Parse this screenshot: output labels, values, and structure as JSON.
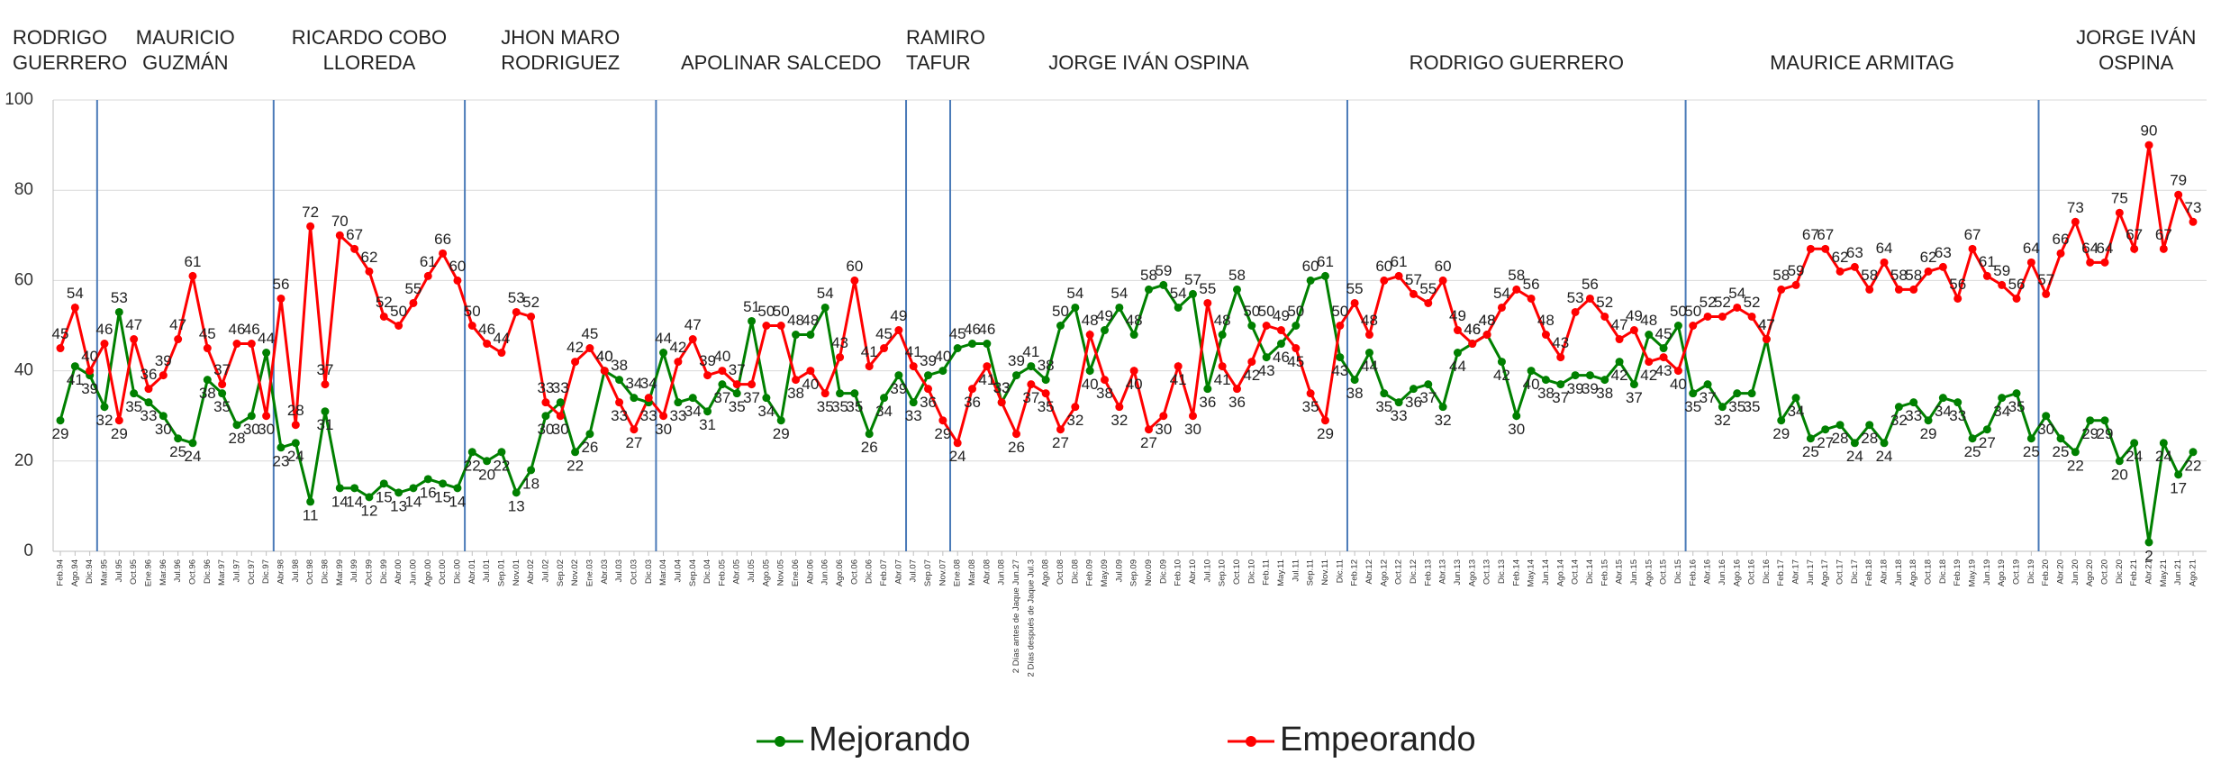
{
  "chart_data": {
    "type": "line",
    "categories": [
      "Feb.94",
      "Ago.94",
      "Dic.94",
      "Mar.95",
      "Jul.95",
      "Oct.95",
      "Ene.96",
      "Mar.96",
      "Jul.96",
      "Oct.96",
      "Dic.96",
      "Mar.97",
      "Jul.97",
      "Oct.97",
      "Dic.97",
      "Abr.98",
      "Jul.98",
      "Oct.98",
      "Dic.98",
      "Mar.99",
      "Jul.99",
      "Oct.99",
      "Dic.99",
      "Abr.00",
      "Jun.00",
      "Ago.00",
      "Oct.00",
      "Dic.00",
      "Abr.01",
      "Jul.01",
      "Sep.01",
      "Nov.01",
      "Abr.02",
      "Jul.02",
      "Sep.02",
      "Nov.02",
      "Ene.03",
      "Abr.03",
      "Jul.03",
      "Oct.03",
      "Dic.03",
      "Mar.04",
      "Jul.04",
      "Sep.04",
      "Dic.04",
      "Feb.05",
      "Abr.05",
      "Jul.05",
      "Ago.05",
      "Nov.05",
      "Ene.06",
      "Abr.06",
      "Jun.06",
      "Ago.06",
      "Oct.06",
      "Dic.06",
      "Feb.07",
      "Abr.07",
      "Jul.07",
      "Sep.07",
      "Nov.07",
      "Ene.08",
      "Mar.08",
      "Abr.08",
      "Jun.08",
      "2 Días antes de Jaque Jun.27",
      "2 Días después de Jaque Jul.3",
      "Ago.08",
      "Oct.08",
      "Dic.08",
      "Feb.09",
      "May.09",
      "Jul.09",
      "Sep.09",
      "Nov.09",
      "Dic.09",
      "Feb.10",
      "Abr.10",
      "Jul.10",
      "Sep.10",
      "Oct.10",
      "Dic.10",
      "Feb.11",
      "May.11",
      "Jul.11",
      "Sep.11",
      "Nov.11",
      "Dic.11",
      "Feb.12",
      "Abr.12",
      "Ago.12",
      "Oct.12",
      "Dic.12",
      "Feb.13",
      "Abr.13",
      "Jun.13",
      "Ago.13",
      "Oct.13",
      "Dic.13",
      "Feb.14",
      "May.14",
      "Jun.14",
      "Ago.14",
      "Oct.14",
      "Dic.14",
      "Feb.15",
      "Abr.15",
      "Jun.15",
      "Ago.15",
      "Oct.15",
      "Dic.15",
      "Feb.16",
      "Abr.16",
      "Jun.16",
      "Ago.16",
      "Oct.16",
      "Dic.16",
      "Feb.17",
      "Abr.17",
      "Jun.17",
      "Ago.17",
      "Oct.17",
      "Dic.17",
      "Feb.18",
      "Abr.18",
      "Jun.18",
      "Ago.18",
      "Oct.18",
      "Dic.18",
      "Feb.19",
      "May.19",
      "Jun.19",
      "Ago.19",
      "Oct.19",
      "Dic.19",
      "Feb.20",
      "Abr.20",
      "Jun.20",
      "Ago.20",
      "Oct.20",
      "Dic.20",
      "Feb.21",
      "Abr.21",
      "May.21",
      "Jun.21",
      "Ago.21"
    ],
    "series": [
      {
        "name": "Mejorando",
        "color": "#008000",
        "values": [
          29,
          41,
          39,
          32,
          53,
          35,
          33,
          30,
          25,
          24,
          38,
          35,
          28,
          30,
          44,
          23,
          24,
          11,
          31,
          14,
          14,
          12,
          15,
          13,
          14,
          16,
          15,
          14,
          22,
          20,
          22,
          13,
          18,
          30,
          33,
          22,
          26,
          40,
          38,
          34,
          33,
          44,
          33,
          34,
          31,
          37,
          35,
          51,
          34,
          29,
          48,
          48,
          54,
          35,
          35,
          26,
          34,
          39,
          33,
          39,
          40,
          45,
          46,
          46,
          33,
          39,
          41,
          38,
          50,
          54,
          40,
          49,
          54,
          48,
          58,
          59,
          54,
          57,
          36,
          48,
          58,
          50,
          43,
          46,
          50,
          60,
          61,
          43,
          38,
          44,
          35,
          33,
          36,
          37,
          32,
          44,
          46,
          48,
          42,
          30,
          40,
          38,
          37,
          39,
          39,
          38,
          42,
          37,
          48,
          45,
          50,
          35,
          37,
          32,
          35,
          35,
          47,
          29,
          34,
          25,
          27,
          28,
          24,
          28,
          24,
          32,
          33,
          29,
          34,
          33,
          25,
          27,
          34,
          35,
          25,
          30,
          25,
          22,
          29,
          29,
          20,
          24,
          2,
          24,
          17,
          22
        ]
      },
      {
        "name": "Empeorando",
        "color": "#ff0000",
        "values": [
          45,
          54,
          40,
          46,
          29,
          47,
          36,
          39,
          47,
          61,
          45,
          37,
          46,
          46,
          30,
          56,
          28,
          72,
          37,
          70,
          67,
          62,
          52,
          50,
          55,
          61,
          66,
          60,
          50,
          46,
          44,
          53,
          52,
          33,
          30,
          42,
          45,
          40,
          33,
          27,
          34,
          30,
          42,
          47,
          39,
          40,
          37,
          37,
          50,
          50,
          38,
          40,
          35,
          43,
          60,
          41,
          45,
          49,
          41,
          36,
          29,
          24,
          36,
          41,
          33,
          26,
          37,
          35,
          27,
          32,
          48,
          38,
          32,
          40,
          27,
          30,
          41,
          30,
          55,
          41,
          36,
          42,
          50,
          49,
          45,
          35,
          29,
          50,
          55,
          48,
          60,
          61,
          57,
          55,
          60,
          49,
          46,
          48,
          54,
          58,
          56,
          48,
          43,
          53,
          56,
          52,
          47,
          49,
          42,
          43,
          40,
          50,
          52,
          52,
          54,
          52,
          47,
          58,
          59,
          67,
          67,
          62,
          63,
          58,
          64,
          58,
          58,
          62,
          63,
          56,
          67,
          61,
          59,
          56,
          64,
          57,
          66,
          73,
          64,
          64,
          75,
          67,
          90,
          67,
          79,
          73
        ]
      }
    ],
    "periods": [
      {
        "name": "RODRIGO GUERRERO"
      },
      {
        "name": "MAURICIO GUZMÁN",
        "from": "Mar.95"
      },
      {
        "name": "RICARDO COBO LLOREDA",
        "from": "Abr.98"
      },
      {
        "name": "JHON MARO RODRIGUEZ",
        "from": "Abr.01"
      },
      {
        "name": "APOLINAR SALCEDO",
        "from": "Mar.04"
      },
      {
        "name": "RAMIRO TAFUR",
        "from": "Jul.07"
      },
      {
        "name": "JORGE IVÁN OSPINA",
        "from": "Ene.08"
      },
      {
        "name": "RODRIGO GUERRERO",
        "from": "Feb.12"
      },
      {
        "name": "MAURICE ARMITAG",
        "from": "Feb.16"
      },
      {
        "name": "JORGE IVÁN OSPINA",
        "from": "Feb.20"
      }
    ],
    "ylim": [
      0,
      100
    ],
    "yticks": [
      0,
      20,
      40,
      60,
      80,
      100
    ],
    "grid": true,
    "legend": "bottom"
  }
}
